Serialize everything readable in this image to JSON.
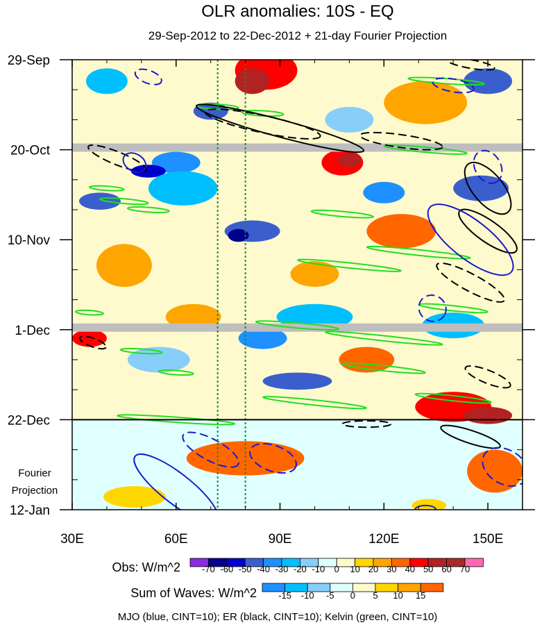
{
  "chart_data": {
    "type": "heatmap",
    "title": "OLR anomalies: 10S - EQ",
    "subtitle": "29-Sep-2012 to 22-Dec-2012 + 21-day Fourier Projection",
    "x_ticks": [
      {
        "label": "30E",
        "value": 30
      },
      {
        "label": "60E",
        "value": 60
      },
      {
        "label": "90E",
        "value": 90
      },
      {
        "label": "120E",
        "value": 120
      },
      {
        "label": "150E",
        "value": 150
      }
    ],
    "xlim": [
      30,
      160
    ],
    "y_ticks": [
      {
        "label": "29-Sep",
        "day": 0
      },
      {
        "label": "20-Oct",
        "day": 21
      },
      {
        "label": "10-Nov",
        "day": 42
      },
      {
        "label": "1-Dec",
        "day": 63
      },
      {
        "label": "22-Dec",
        "day": 84
      },
      {
        "label": "12-Jan",
        "day": 105
      }
    ],
    "ylim_days": [
      0,
      105
    ],
    "projection_start_day": 84,
    "projection_label_line1": "Fourier",
    "projection_label_line2": "Projection",
    "reference_longitudes": [
      72,
      80
    ],
    "obs_colorbar": {
      "label": "Obs: W/m^2",
      "levels": [
        "-70",
        "-60",
        "-50",
        "-40",
        "-30",
        "-20",
        "-10",
        "0",
        "10",
        "20",
        "30",
        "40",
        "50",
        "60",
        "70"
      ],
      "colors": [
        "#8a2be2",
        "#00008b",
        "#0000cd",
        "#3a5fcd",
        "#1e90ff",
        "#00bfff",
        "#87cefa",
        "#e0ffff",
        "#fffacd",
        "#ffd700",
        "#ffa500",
        "#ff6600",
        "#ff0000",
        "#b22222",
        "#a52a2a",
        "#ff69b4"
      ]
    },
    "waves_colorbar": {
      "label": "Sum of Waves: W/m^2",
      "levels": [
        "-15",
        "-10",
        "-5",
        "0",
        "5",
        "10",
        "15"
      ],
      "colors": [
        "#1e90ff",
        "#00bfff",
        "#87cefa",
        "#e0ffff",
        "#fffacd",
        "#ffd700",
        "#ffa500",
        "#ff6600"
      ]
    },
    "footer": "MJO (blue, CINT=10); ER (black, CINT=10); Kelvin (green, CINT=10)",
    "wave_colors": {
      "mjo": "#1a1acd",
      "er": "#000000",
      "kelvin": "#22dd22"
    },
    "missing_color": "#bebebe",
    "missing_rows_days": [
      20.5,
      62.5
    ],
    "observed_blobs": [
      {
        "lon": 86,
        "day": 2.5,
        "w": 18,
        "h": 9,
        "c": 12
      },
      {
        "lon": 82,
        "day": 5,
        "w": 10,
        "h": 6,
        "c": 13
      },
      {
        "lon": 108,
        "day": 24,
        "w": 12,
        "h": 6,
        "c": 12
      },
      {
        "lon": 110,
        "day": 23.5,
        "w": 7,
        "h": 3,
        "c": 13
      },
      {
        "lon": 140,
        "day": 81,
        "w": 22,
        "h": 7,
        "c": 12
      },
      {
        "lon": 150,
        "day": 83,
        "w": 14,
        "h": 4,
        "c": 13
      },
      {
        "lon": 125,
        "day": 40,
        "w": 20,
        "h": 8,
        "c": 11
      },
      {
        "lon": 65,
        "day": 60,
        "w": 16,
        "h": 6,
        "c": 10
      },
      {
        "lon": 35,
        "day": 65,
        "w": 10,
        "h": 4,
        "c": 12
      },
      {
        "lon": 132,
        "day": 10,
        "w": 24,
        "h": 10,
        "c": 10
      },
      {
        "lon": 100,
        "day": 50,
        "w": 14,
        "h": 6,
        "c": 10
      },
      {
        "lon": 115,
        "day": 70,
        "w": 16,
        "h": 6,
        "c": 11
      },
      {
        "lon": 45,
        "day": 48,
        "w": 16,
        "h": 10,
        "c": 10
      },
      {
        "lon": 70,
        "day": 12,
        "w": 10,
        "h": 4,
        "c": 3
      },
      {
        "lon": 60,
        "day": 24,
        "w": 14,
        "h": 5,
        "c": 4
      },
      {
        "lon": 52,
        "day": 26,
        "w": 10,
        "h": 3,
        "c": 2
      },
      {
        "lon": 38,
        "day": 33,
        "w": 12,
        "h": 4,
        "c": 3
      },
      {
        "lon": 82,
        "day": 40,
        "w": 16,
        "h": 5,
        "c": 3
      },
      {
        "lon": 78,
        "day": 41,
        "w": 6,
        "h": 3,
        "c": 1
      },
      {
        "lon": 120,
        "day": 31,
        "w": 12,
        "h": 5,
        "c": 4
      },
      {
        "lon": 148,
        "day": 30,
        "w": 16,
        "h": 6,
        "c": 3
      },
      {
        "lon": 95,
        "day": 75,
        "w": 20,
        "h": 4,
        "c": 3
      },
      {
        "lon": 150,
        "day": 5,
        "w": 14,
        "h": 6,
        "c": 3
      },
      {
        "lon": 40,
        "day": 5,
        "w": 12,
        "h": 6,
        "c": 5
      },
      {
        "lon": 62,
        "day": 30,
        "w": 20,
        "h": 8,
        "c": 5
      },
      {
        "lon": 100,
        "day": 60,
        "w": 22,
        "h": 6,
        "c": 5
      },
      {
        "lon": 140,
        "day": 62,
        "w": 18,
        "h": 6,
        "c": 5
      },
      {
        "lon": 110,
        "day": 14,
        "w": 14,
        "h": 6,
        "c": 6
      },
      {
        "lon": 55,
        "day": 70,
        "w": 18,
        "h": 6,
        "c": 6
      },
      {
        "lon": 85,
        "day": 65,
        "w": 14,
        "h": 5,
        "c": 4
      }
    ],
    "projection_blobs": [
      {
        "lon": 80,
        "day": 93,
        "w": 34,
        "h": 8,
        "c": 5
      },
      {
        "lon": 152,
        "day": 96,
        "w": 16,
        "h": 10,
        "c": 5
      },
      {
        "lon": 48,
        "day": 102,
        "w": 18,
        "h": 5,
        "c": 2
      },
      {
        "lon": 133,
        "day": 104,
        "w": 10,
        "h": 3,
        "c": 2
      }
    ],
    "mjo_contours": [
      {
        "lon": 52,
        "day": 4,
        "w": 8,
        "h": 3,
        "rot": 20,
        "dash": true
      },
      {
        "lon": 48,
        "day": 24,
        "w": 7,
        "h": 4,
        "rot": 30,
        "dash": false
      },
      {
        "lon": 145,
        "day": 42,
        "w": 30,
        "h": 9,
        "rot": 38,
        "dash": false
      },
      {
        "lon": 134,
        "day": 58,
        "w": 8,
        "h": 6,
        "rot": 30,
        "dash": true
      },
      {
        "lon": 150,
        "day": 25,
        "w": 10,
        "h": 6,
        "rot": 60,
        "dash": true
      },
      {
        "lon": 60,
        "day": 100,
        "w": 30,
        "h": 7,
        "rot": 38,
        "dash": false
      },
      {
        "lon": 70,
        "day": 91,
        "w": 18,
        "h": 5,
        "rot": 28,
        "dash": true
      },
      {
        "lon": 88,
        "day": 93,
        "w": 14,
        "h": 6,
        "rot": 20,
        "dash": true
      },
      {
        "lon": 155,
        "day": 95,
        "w": 14,
        "h": 8,
        "rot": 30,
        "dash": true
      },
      {
        "lon": 140,
        "day": 6,
        "w": 12,
        "h": 3,
        "rot": 10,
        "dash": true
      },
      {
        "lon": 132,
        "day": 105,
        "w": 6,
        "h": 2,
        "rot": 0,
        "dash": false
      }
    ],
    "er_contours": [
      {
        "lon": 90,
        "day": 16,
        "w": 50,
        "h": 4,
        "rot": 15,
        "dash": false
      },
      {
        "lon": 85,
        "day": 15,
        "w": 34,
        "h": 4,
        "rot": 12,
        "dash": true
      },
      {
        "lon": 43,
        "day": 23,
        "w": 18,
        "h": 3,
        "rot": 22,
        "dash": true
      },
      {
        "lon": 125,
        "day": 19,
        "w": 24,
        "h": 3,
        "rot": 8,
        "dash": true
      },
      {
        "lon": 150,
        "day": 40,
        "w": 20,
        "h": 5,
        "rot": 35,
        "dash": false
      },
      {
        "lon": 145,
        "day": 52,
        "w": 22,
        "h": 4,
        "rot": 28,
        "dash": true
      },
      {
        "lon": 150,
        "day": 30,
        "w": 18,
        "h": 7,
        "rot": 50,
        "dash": false
      },
      {
        "lon": 36,
        "day": 66,
        "w": 8,
        "h": 2,
        "rot": 20,
        "dash": true
      },
      {
        "lon": 150,
        "day": 74,
        "w": 14,
        "h": 3,
        "rot": 22,
        "dash": true
      },
      {
        "lon": 145,
        "day": 88,
        "w": 18,
        "h": 3,
        "rot": 18,
        "dash": false
      },
      {
        "lon": 145,
        "day": 1,
        "w": 14,
        "h": 2,
        "rot": 10,
        "dash": true
      },
      {
        "lon": 115,
        "day": 85,
        "w": 14,
        "h": 1.5,
        "rot": 0,
        "dash": true
      }
    ],
    "kelvin_contours": [
      {
        "lon": 72,
        "day": 11,
        "w": 12,
        "h": 1.2,
        "rot": 3
      },
      {
        "lon": 85,
        "day": 12.5,
        "w": 12,
        "h": 1.2,
        "rot": 3
      },
      {
        "lon": 132,
        "day": 21,
        "w": 24,
        "h": 1.2,
        "rot": 5
      },
      {
        "lon": 138,
        "day": 5,
        "w": 22,
        "h": 1.2,
        "rot": 4
      },
      {
        "lon": 52,
        "day": 35,
        "w": 12,
        "h": 1.1,
        "rot": 4
      },
      {
        "lon": 108,
        "day": 36,
        "w": 18,
        "h": 1.2,
        "rot": 5
      },
      {
        "lon": 45,
        "day": 33,
        "w": 14,
        "h": 1.1,
        "rot": 5
      },
      {
        "lon": 130,
        "day": 45,
        "w": 30,
        "h": 1.3,
        "rot": 6
      },
      {
        "lon": 110,
        "day": 48,
        "w": 30,
        "h": 1.2,
        "rot": 6
      },
      {
        "lon": 140,
        "day": 58,
        "w": 20,
        "h": 1.2,
        "rot": 6
      },
      {
        "lon": 120,
        "day": 65,
        "w": 34,
        "h": 1.2,
        "rot": 6
      },
      {
        "lon": 95,
        "day": 62,
        "w": 24,
        "h": 1.2,
        "rot": 5
      },
      {
        "lon": 35,
        "day": 59,
        "w": 8,
        "h": 1,
        "rot": 4
      },
      {
        "lon": 50,
        "day": 68,
        "w": 12,
        "h": 1,
        "rot": 4
      },
      {
        "lon": 60,
        "day": 73,
        "w": 10,
        "h": 1,
        "rot": 4
      },
      {
        "lon": 120,
        "day": 72,
        "w": 24,
        "h": 1.2,
        "rot": 6
      },
      {
        "lon": 140,
        "day": 79,
        "w": 22,
        "h": 1.2,
        "rot": 6
      },
      {
        "lon": 100,
        "day": 80,
        "w": 30,
        "h": 1.2,
        "rot": 6
      },
      {
        "lon": 60,
        "day": 84,
        "w": 34,
        "h": 1.2,
        "rot": 4
      },
      {
        "lon": 40,
        "day": 30,
        "w": 10,
        "h": 1,
        "rot": 4
      }
    ]
  }
}
